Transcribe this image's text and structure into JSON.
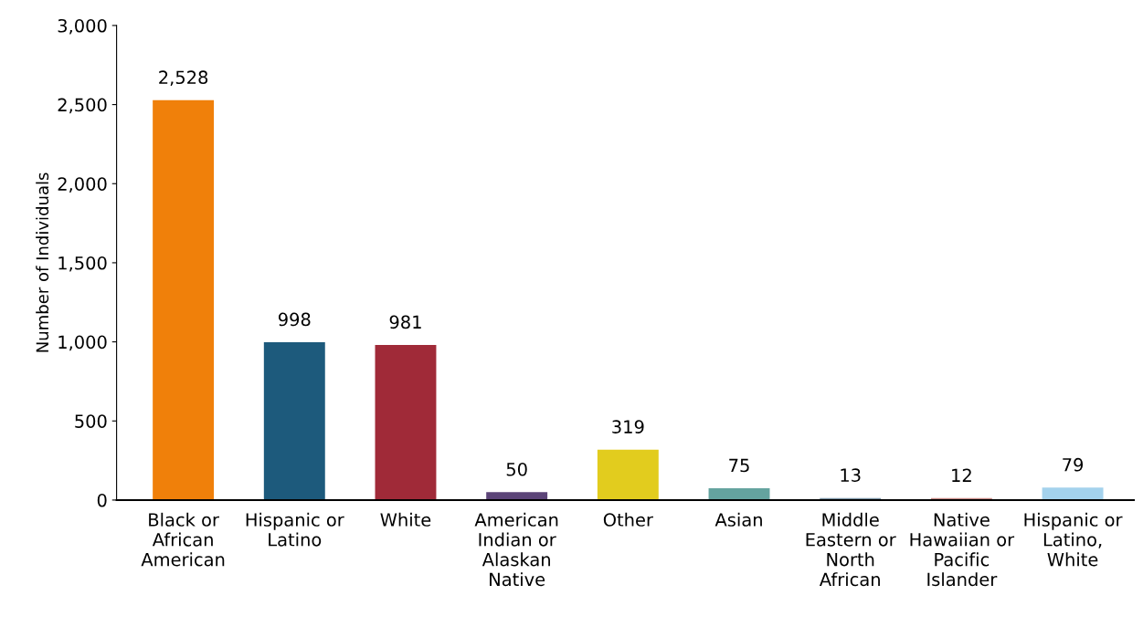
{
  "chart_data": {
    "type": "bar",
    "ylabel": "Number of Individuals",
    "categories": [
      "Black or African American",
      "Hispanic or Latino",
      "White",
      "American Indian or Alaskan Native",
      "Other",
      "Asian",
      "Middle Eastern or North African",
      "Native Hawaiian or Pacific Islander",
      "Hispanic or Latino, White"
    ],
    "values": [
      2528,
      998,
      981,
      50,
      319,
      75,
      13,
      12,
      79
    ],
    "colors": [
      "#f0800a",
      "#1d5a7c",
      "#a02a38",
      "#5c4478",
      "#e2cc1e",
      "#64a39f",
      "#7d96a8",
      "#c98a86",
      "#a4d2ed"
    ],
    "value_labels": [
      "2,528",
      "998",
      "981",
      "50",
      "319",
      "75",
      "13",
      "12",
      "79"
    ],
    "ylim": [
      0,
      3000
    ],
    "yticks": [
      0,
      500,
      {
        "value": 1000,
        "label": "1,000"
      },
      {
        "value": 1500,
        "label": "1,500"
      },
      {
        "value": 2000,
        "label": "2,000"
      },
      {
        "value": 2500,
        "label": "2,500"
      },
      {
        "value": 3000,
        "label": "3,000"
      }
    ],
    "grid": false,
    "legend": false
  }
}
